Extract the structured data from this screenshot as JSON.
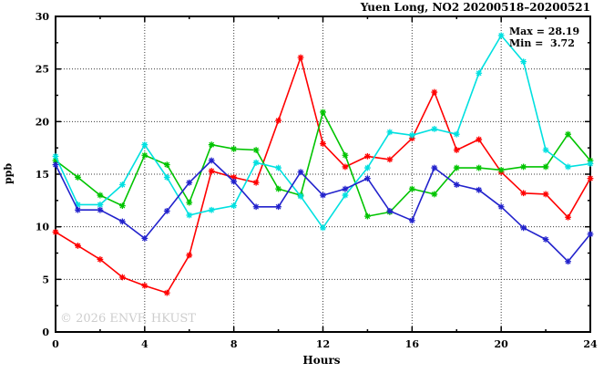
{
  "watermark": "© 2026 ENVF, HKUST",
  "annotations": {
    "max_line": "Max = 28.19",
    "min_line": "Min =  3.72"
  },
  "chart_data": {
    "type": "line",
    "title": "Yuen Long, NO2 20200518–20200521",
    "xlabel": "Hours",
    "ylabel": "ppb",
    "xlim": [
      0,
      24
    ],
    "ylim": [
      0,
      30
    ],
    "xticks": [
      0,
      4,
      8,
      12,
      16,
      20,
      24
    ],
    "xminor": [
      2,
      6,
      10,
      14,
      18,
      22
    ],
    "yticks": [
      0,
      5,
      10,
      15,
      20,
      25,
      30
    ],
    "yminor": [
      2.5,
      7.5,
      12.5,
      17.5,
      22.5,
      27.5
    ],
    "grid": true,
    "legend": "none",
    "marker": "asterisk",
    "x": [
      0,
      1,
      2,
      3,
      4,
      5,
      6,
      7,
      8,
      9,
      10,
      11,
      12,
      13,
      14,
      15,
      16,
      17,
      18,
      19,
      20,
      21,
      22,
      23,
      24
    ],
    "series": [
      {
        "name": "red-line",
        "color": "#ff0000",
        "values": [
          9.5,
          8.2,
          6.9,
          5.2,
          4.4,
          3.72,
          7.3,
          15.3,
          14.7,
          14.2,
          20.1,
          26.1,
          17.9,
          15.7,
          16.7,
          16.4,
          18.4,
          22.8,
          17.3,
          18.3,
          15.2,
          13.2,
          13.1,
          10.9,
          14.6
        ]
      },
      {
        "name": "green-line",
        "color": "#00c400",
        "values": [
          16.3,
          14.7,
          13.0,
          12.0,
          16.8,
          15.9,
          12.3,
          17.8,
          17.4,
          17.3,
          13.6,
          13.0,
          20.9,
          16.8,
          11.0,
          11.4,
          13.6,
          13.1,
          15.6,
          15.6,
          15.4,
          15.7,
          15.7,
          18.8,
          16.3
        ]
      },
      {
        "name": "cyan-line",
        "color": "#00e0e0",
        "values": [
          16.7,
          12.1,
          12.1,
          14.0,
          17.8,
          14.7,
          11.1,
          11.6,
          12.0,
          16.1,
          15.6,
          12.9,
          9.9,
          13.0,
          15.6,
          19.0,
          18.7,
          19.3,
          18.8,
          24.6,
          28.19,
          25.7,
          17.3,
          15.7,
          16.0
        ]
      },
      {
        "name": "blue-line",
        "color": "#2222cc",
        "values": [
          15.9,
          11.6,
          11.6,
          10.5,
          8.9,
          11.5,
          14.2,
          16.3,
          14.3,
          11.9,
          11.9,
          15.2,
          13.0,
          13.6,
          14.6,
          11.5,
          10.6,
          15.6,
          14.0,
          13.5,
          11.9,
          9.9,
          8.8,
          6.7,
          9.3
        ]
      }
    ],
    "stats": {
      "max": 28.19,
      "min": 3.72
    }
  }
}
